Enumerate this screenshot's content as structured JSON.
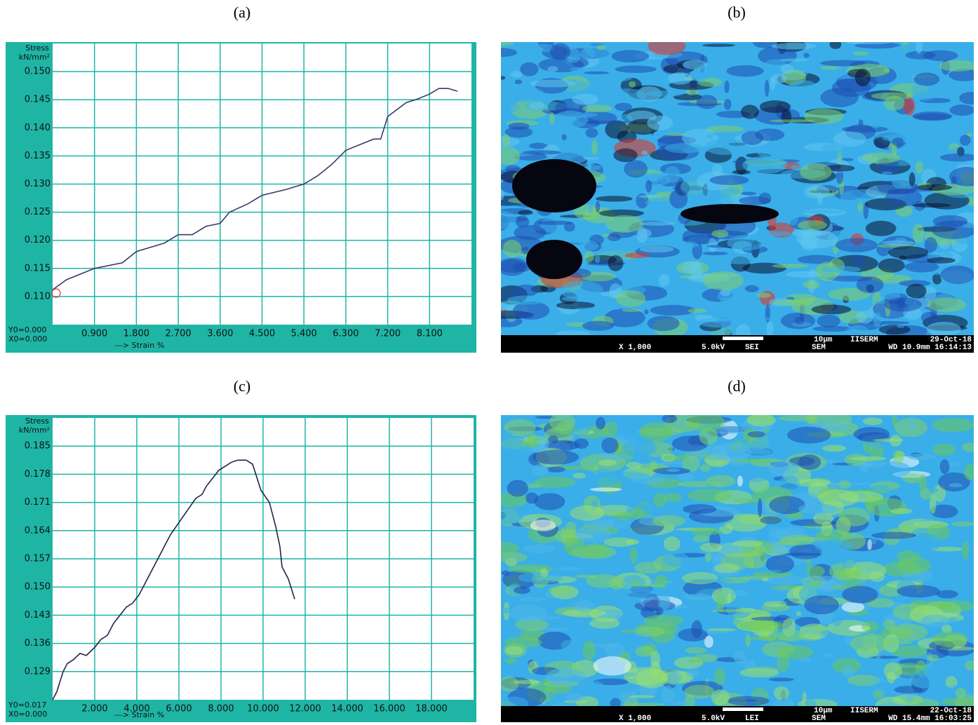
{
  "panel_labels": [
    "(a)",
    "(b)",
    "(c)",
    "(d)"
  ],
  "chart_data": [
    {
      "type": "line",
      "y_label": "Stress",
      "y_unit": "kN/mm²",
      "x_label": "---> Strain  %",
      "origin_labels": [
        "Y0=0.000",
        "X0=0.000"
      ],
      "color": "#3a3a6a",
      "grid": true,
      "grid_color": "#1fb5a5",
      "x": [
        0,
        0.3,
        0.9,
        1.5,
        1.8,
        2.4,
        2.7,
        3.0,
        3.3,
        3.6,
        3.8,
        4.2,
        4.5,
        5.0,
        5.4,
        5.7,
        6.0,
        6.3,
        6.9,
        7.05,
        7.2,
        7.6,
        7.8,
        8.1,
        8.3,
        8.5,
        8.7
      ],
      "values": [
        0.1112,
        0.113,
        0.115,
        0.116,
        0.118,
        0.1195,
        0.121,
        0.121,
        0.1225,
        0.123,
        0.125,
        0.1265,
        0.128,
        0.129,
        0.13,
        0.1315,
        0.1335,
        0.136,
        0.138,
        0.138,
        0.142,
        0.1445,
        0.145,
        0.146,
        0.147,
        0.147,
        0.1465
      ],
      "xlim": [
        0,
        9
      ],
      "ylim": [
        0.105,
        0.155
      ],
      "xticks": [
        {
          "value": 0.9,
          "label": "0.900"
        },
        {
          "value": 1.8,
          "label": "1.800"
        },
        {
          "value": 2.7,
          "label": "2.700"
        },
        {
          "value": 3.6,
          "label": "3.600"
        },
        {
          "value": 4.5,
          "label": "4.500"
        },
        {
          "value": 5.4,
          "label": "5.400"
        },
        {
          "value": 6.3,
          "label": "6.300"
        },
        {
          "value": 7.2,
          "label": "7.200"
        },
        {
          "value": 8.1,
          "label": "8.100"
        }
      ],
      "yticks": [
        {
          "value": 0.11,
          "label": "0.110"
        },
        {
          "value": 0.115,
          "label": "0.115"
        },
        {
          "value": 0.12,
          "label": "0.120"
        },
        {
          "value": 0.125,
          "label": "0.125"
        },
        {
          "value": 0.13,
          "label": "0.130"
        },
        {
          "value": 0.135,
          "label": "0.135"
        },
        {
          "value": 0.14,
          "label": "0.140"
        },
        {
          "value": 0.145,
          "label": "0.145"
        },
        {
          "value": 0.15,
          "label": "0.150"
        }
      ]
    },
    {
      "type": "line",
      "y_label": "Stress",
      "y_unit": "kN/mm²",
      "x_label": "---> Strain  %",
      "origin_labels": [
        "Y0=0.017",
        "X0=0.000"
      ],
      "color": "#22224a",
      "grid": true,
      "grid_color": "#1fb5a5",
      "x": [
        0,
        0.2,
        0.5,
        0.7,
        1.0,
        1.3,
        1.6,
        2.0,
        2.3,
        2.6,
        2.9,
        3.2,
        3.5,
        3.8,
        4.1,
        4.4,
        4.7,
        5.0,
        5.3,
        5.6,
        6.0,
        6.4,
        6.8,
        7.1,
        7.3,
        7.6,
        7.9,
        8.2,
        8.5,
        8.8,
        9.2,
        9.5,
        9.9,
        10.3,
        10.6,
        10.8,
        10.9,
        11.2,
        11.5
      ],
      "values": [
        0.122,
        0.124,
        0.129,
        0.131,
        0.132,
        0.1335,
        0.133,
        0.135,
        0.137,
        0.138,
        0.141,
        0.143,
        0.145,
        0.146,
        0.148,
        0.151,
        0.154,
        0.157,
        0.16,
        0.163,
        0.166,
        0.169,
        0.172,
        0.173,
        0.175,
        0.177,
        0.179,
        0.18,
        0.181,
        0.1815,
        0.1815,
        0.1805,
        0.174,
        0.171,
        0.165,
        0.16,
        0.155,
        0.152,
        0.147
      ],
      "xlim": [
        0,
        20
      ],
      "ylim": [
        0.122,
        0.192
      ],
      "xticks": [
        {
          "value": 2,
          "label": "2.000"
        },
        {
          "value": 4,
          "label": "4.000"
        },
        {
          "value": 6,
          "label": "6.000"
        },
        {
          "value": 8,
          "label": "8.000"
        },
        {
          "value": 10,
          "label": "10.000"
        },
        {
          "value": 12,
          "label": "12.000"
        },
        {
          "value": 14,
          "label": "14.000"
        },
        {
          "value": 16,
          "label": "16.000"
        },
        {
          "value": 18,
          "label": "18.000"
        }
      ],
      "yticks": [
        {
          "value": 0.129,
          "label": "0.129"
        },
        {
          "value": 0.136,
          "label": "0.136"
        },
        {
          "value": 0.143,
          "label": "0.143"
        },
        {
          "value": 0.15,
          "label": "0.150"
        },
        {
          "value": 0.157,
          "label": "0.157"
        },
        {
          "value": 0.164,
          "label": "0.164"
        },
        {
          "value": 0.171,
          "label": "0.171"
        },
        {
          "value": 0.178,
          "label": "0.178"
        },
        {
          "value": 0.185,
          "label": "0.185"
        }
      ]
    }
  ],
  "sem_images": [
    {
      "scale": "10µm",
      "lab": "IISERM",
      "date": "29-Oct-18",
      "magnification": "X 1,000",
      "voltage": "5.0kV",
      "detector": "SEI",
      "instrument": "SEM",
      "details": "WD 10.9mm 16:14:13"
    },
    {
      "scale": "10µm",
      "lab": "IISERM",
      "date": "22-Oct-18",
      "magnification": "X 1,000",
      "voltage": "5.0kV",
      "detector": "LEI",
      "instrument": "SEM",
      "details": "WD 15.4mm 16:03:25"
    }
  ]
}
